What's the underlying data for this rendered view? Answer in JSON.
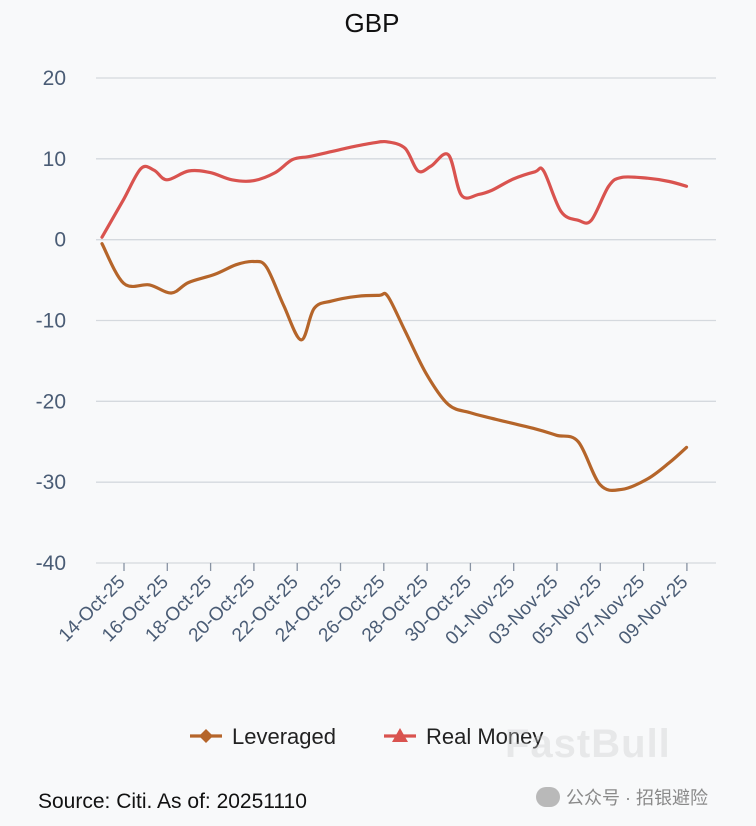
{
  "chart_data": {
    "type": "line",
    "title": "GBP",
    "xlabel": "",
    "ylabel": "",
    "ylim": [
      -40,
      20
    ],
    "yticks": [
      20,
      10,
      0,
      -10,
      -20,
      -30,
      -40
    ],
    "x_tick_labels": [
      "14-Oct-25",
      "16-Oct-25",
      "18-Oct-25",
      "20-Oct-25",
      "22-Oct-25",
      "24-Oct-25",
      "26-Oct-25",
      "28-Oct-25",
      "30-Oct-25",
      "01-Nov-25",
      "03-Nov-25",
      "05-Nov-25",
      "07-Nov-25",
      "09-Nov-25"
    ],
    "series": [
      {
        "name": "Leveraged",
        "color": "#b5652a",
        "marker": "diamond",
        "points": [
          [
            0.0,
            -0.5
          ],
          [
            0.5,
            -5.4
          ],
          [
            1.1,
            -5.6
          ],
          [
            1.6,
            -6.6
          ],
          [
            2.0,
            -5.3
          ],
          [
            2.6,
            -4.3
          ],
          [
            3.1,
            -3.1
          ],
          [
            3.5,
            -2.7
          ],
          [
            3.8,
            -3.4
          ],
          [
            4.2,
            -8.2
          ],
          [
            4.6,
            -12.4
          ],
          [
            4.9,
            -8.5
          ],
          [
            5.3,
            -7.6
          ],
          [
            5.9,
            -7.0
          ],
          [
            6.4,
            -6.9
          ],
          [
            6.6,
            -7.0
          ],
          [
            7.0,
            -11.3
          ],
          [
            7.5,
            -16.7
          ],
          [
            8.0,
            -20.4
          ],
          [
            8.5,
            -21.4
          ],
          [
            9.0,
            -22.1
          ],
          [
            10.0,
            -23.4
          ],
          [
            10.5,
            -24.2
          ],
          [
            11.0,
            -25.0
          ],
          [
            11.5,
            -30.3
          ],
          [
            12.0,
            -30.9
          ],
          [
            12.6,
            -29.6
          ],
          [
            13.1,
            -27.6
          ],
          [
            13.5,
            -25.7
          ]
        ]
      },
      {
        "name": "Real Money",
        "color": "#d9534f",
        "marker": "triangle",
        "points": [
          [
            0.0,
            0.3
          ],
          [
            0.5,
            5.0
          ],
          [
            0.9,
            8.8
          ],
          [
            1.2,
            8.6
          ],
          [
            1.5,
            7.4
          ],
          [
            2.0,
            8.5
          ],
          [
            2.5,
            8.3
          ],
          [
            3.0,
            7.4
          ],
          [
            3.5,
            7.3
          ],
          [
            4.0,
            8.3
          ],
          [
            4.4,
            9.9
          ],
          [
            4.8,
            10.3
          ],
          [
            5.3,
            10.9
          ],
          [
            5.8,
            11.5
          ],
          [
            6.3,
            12.0
          ],
          [
            6.6,
            12.1
          ],
          [
            7.0,
            11.3
          ],
          [
            7.3,
            8.5
          ],
          [
            7.6,
            9.1
          ],
          [
            8.0,
            10.5
          ],
          [
            8.3,
            5.5
          ],
          [
            8.7,
            5.6
          ],
          [
            9.0,
            6.1
          ],
          [
            9.5,
            7.5
          ],
          [
            10.0,
            8.4
          ],
          [
            10.2,
            8.5
          ],
          [
            10.6,
            3.5
          ],
          [
            11.0,
            2.4
          ],
          [
            11.3,
            2.4
          ],
          [
            11.7,
            6.6
          ],
          [
            12.0,
            7.7
          ],
          [
            12.6,
            7.6
          ],
          [
            13.1,
            7.2
          ],
          [
            13.5,
            6.6
          ]
        ]
      }
    ],
    "legend": {
      "position": "bottom-center"
    }
  },
  "source_text": "Source: Citi. As of: 20251110",
  "watermark_text": "FastBull",
  "wechat_label": "公众号 · 招银避险"
}
